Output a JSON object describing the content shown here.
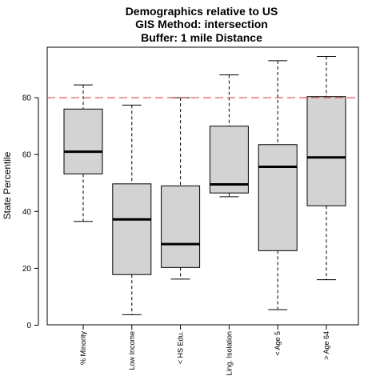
{
  "chart_data": {
    "type": "boxplot",
    "title_lines": [
      "Demographics relative to US",
      "GIS Method: intersection",
      "Buffer: 1 mile Distance"
    ],
    "ylabel": "State Percentile",
    "xlabel": "",
    "ylim": [
      0,
      97
    ],
    "yticks": [
      0,
      20,
      40,
      60,
      80
    ],
    "yticklabels": [
      "0",
      "20",
      "40",
      "60",
      "80"
    ],
    "reference_line": {
      "y": 80,
      "color": "#cc3333",
      "style": "dashed"
    },
    "box_fill": "#d3d3d3",
    "categories": [
      "% Minority",
      "Low Income",
      "< HS Edu.",
      "Ling. Isolation",
      "< Age 5",
      "> Age 64"
    ],
    "boxes": [
      {
        "whisker_low": 36.5,
        "q1": 53.2,
        "median": 61.0,
        "q3": 76.0,
        "whisker_high": 84.5
      },
      {
        "whisker_low": 3.7,
        "q1": 17.8,
        "median": 37.2,
        "q3": 49.7,
        "whisker_high": 77.4
      },
      {
        "whisker_low": 16.2,
        "q1": 20.3,
        "median": 28.5,
        "q3": 49.0,
        "whisker_high": 80.0
      },
      {
        "whisker_low": 45.2,
        "q1": 46.5,
        "median": 49.5,
        "q3": 70.0,
        "whisker_high": 88.0
      },
      {
        "whisker_low": 5.5,
        "q1": 26.2,
        "median": 55.7,
        "q3": 63.5,
        "whisker_high": 93.0
      },
      {
        "whisker_low": 16.0,
        "q1": 42.0,
        "median": 59.0,
        "q3": 80.4,
        "whisker_high": 94.5
      }
    ]
  }
}
